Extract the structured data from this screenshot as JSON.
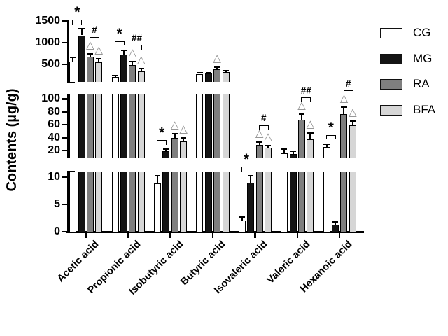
{
  "chart_data": {
    "type": "bar",
    "title": "",
    "ylabel": "Contents (µg/g)",
    "xlabel": "",
    "grid": false,
    "legend_position": "top-right",
    "categories": [
      "Acetic acid",
      "Propionic acid",
      "Isobutyric acid",
      "Butyric acid",
      "Isovaleric acid",
      "Valeric acid",
      "Hexanoic acid"
    ],
    "series": [
      {
        "name": "CG",
        "fill": "#ffffff",
        "values": [
          570,
          210,
          8.8,
          285,
          2.1,
          15,
          25
        ],
        "errors": [
          95,
          35,
          1.4,
          25,
          0.6,
          7,
          5
        ]
      },
      {
        "name": "MG",
        "fill": "#141414",
        "values": [
          1170,
          720,
          19,
          290,
          8.9,
          14,
          1.3
        ],
        "errors": [
          145,
          105,
          3,
          20,
          1.3,
          5,
          0.5
        ]
      },
      {
        "name": "RA",
        "fill": "#7f7f7f",
        "values": [
          685,
          480,
          40,
          395,
          29,
          68,
          77
        ],
        "errors": [
          60,
          80,
          6,
          45,
          4,
          8,
          10
        ]
      },
      {
        "name": "BFA",
        "fill": "#d6d6d6",
        "values": [
          550,
          345,
          34,
          330,
          24,
          37,
          59
        ],
        "errors": [
          80,
          55,
          6,
          35,
          3.5,
          10,
          7
        ]
      }
    ],
    "axis_segments": [
      {
        "range": [
          0,
          11
        ],
        "ticks": [
          0,
          5,
          10
        ]
      },
      {
        "range": [
          9,
          107
        ],
        "ticks": [
          20,
          40,
          60,
          80,
          100
        ]
      },
      {
        "range": [
          100,
          1500
        ],
        "ticks": [
          500,
          1000,
          1500
        ]
      }
    ],
    "annotations": {
      "triangles": [
        {
          "category": "Acetic acid",
          "series": "RA"
        },
        {
          "category": "Acetic acid",
          "series": "BFA"
        },
        {
          "category": "Propionic acid",
          "series": "RA"
        },
        {
          "category": "Propionic acid",
          "series": "BFA"
        },
        {
          "category": "Isobutyric acid",
          "series": "RA"
        },
        {
          "category": "Isobutyric acid",
          "series": "BFA"
        },
        {
          "category": "Butyric acid",
          "series": "RA"
        },
        {
          "category": "Isovaleric acid",
          "series": "RA"
        },
        {
          "category": "Isovaleric acid",
          "series": "BFA"
        },
        {
          "category": "Valeric acid",
          "series": "RA"
        },
        {
          "category": "Valeric acid",
          "series": "BFA"
        },
        {
          "category": "Hexanoic acid",
          "series": "RA"
        },
        {
          "category": "Hexanoic acid",
          "series": "BFA"
        }
      ],
      "brackets": [
        {
          "category": "Acetic acid",
          "between": [
            "CG",
            "MG"
          ],
          "label": "*"
        },
        {
          "category": "Acetic acid",
          "between": [
            "RA",
            "BFA"
          ],
          "label": "#"
        },
        {
          "category": "Propionic acid",
          "between": [
            "CG",
            "MG"
          ],
          "label": "*"
        },
        {
          "category": "Propionic acid",
          "between": [
            "RA",
            "BFA"
          ],
          "label": "##"
        },
        {
          "category": "Isobutyric acid",
          "between": [
            "CG",
            "MG"
          ],
          "label": "*"
        },
        {
          "category": "Isovaleric acid",
          "between": [
            "CG",
            "MG"
          ],
          "label": "*"
        },
        {
          "category": "Isovaleric acid",
          "between": [
            "RA",
            "BFA"
          ],
          "label": "#"
        },
        {
          "category": "Valeric acid",
          "between": [
            "RA",
            "BFA"
          ],
          "label": "##"
        },
        {
          "category": "Hexanoic acid",
          "between": [
            "CG",
            "MG"
          ],
          "label": "*"
        },
        {
          "category": "Hexanoic acid",
          "between": [
            "RA",
            "BFA"
          ],
          "label": "#"
        }
      ]
    },
    "legend": [
      "CG",
      "MG",
      "RA",
      "BFA"
    ],
    "triangle_symbol": "△",
    "colors": {
      "bar_outline": "#000000",
      "axis": "#000000",
      "triangle": "#8a8a8a"
    }
  }
}
